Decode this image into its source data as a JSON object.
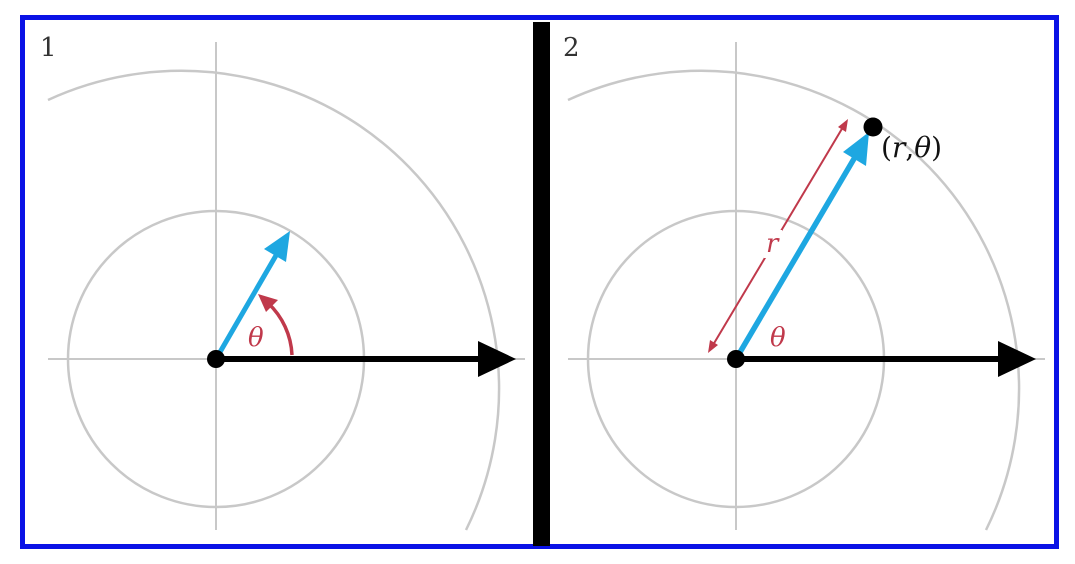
{
  "colors": {
    "frame": "#0a12e6",
    "grid": "#c8c8c8",
    "axis_arrow": "#000000",
    "vector": "#1ea7e1",
    "angle": "#c0394b",
    "divider": "#000000",
    "background": "#ffffff"
  },
  "panels": [
    {
      "number": "1",
      "angle_label": "θ"
    },
    {
      "number": "2",
      "angle_label": "θ",
      "radius_label": "r",
      "point_label": {
        "open": "(",
        "r": "r",
        "comma": ",",
        "theta": "θ",
        "close": ")"
      }
    }
  ]
}
